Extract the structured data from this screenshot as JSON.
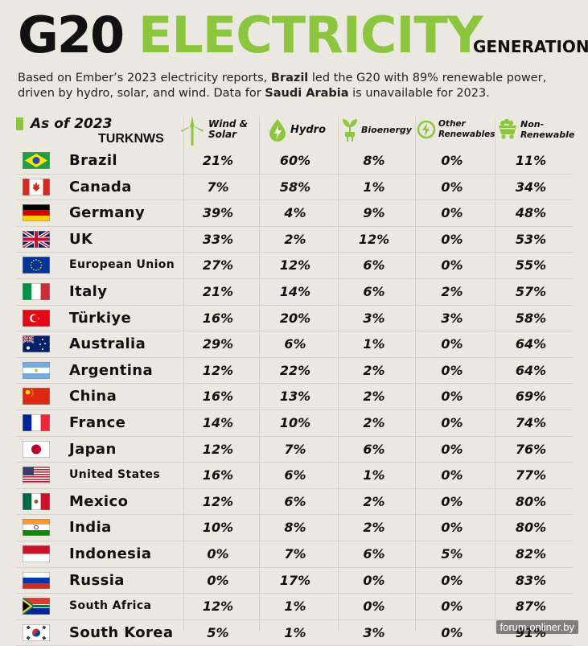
{
  "header": {
    "title_main": "G20",
    "title_accent": "ELECTRICITY",
    "title_suffix": "GENERATION",
    "subtitle_parts": {
      "p1": "Based on Ember’s 2023 electricity reports, ",
      "b1": "Brazil",
      "p2": " led the G20 with 89% renewable power, driven by hydro, solar, and wind. Data for ",
      "b2": "Saudi Arabia",
      "p3": " is unavailable for 2023."
    },
    "as_of": "As of 2023",
    "watermark": "TURKNWS"
  },
  "columns": [
    {
      "l1": "Wind &",
      "l2": "Solar",
      "icon": "wind-turbine-icon"
    },
    {
      "l1": "Hydro",
      "l2": "",
      "icon": "water-drop-bolt-icon"
    },
    {
      "l1": "Bioenergy",
      "l2": "",
      "icon": "plant-plug-icon"
    },
    {
      "l1": "Other",
      "l2": "Renewables",
      "icon": "bolt-circle-icon"
    },
    {
      "l1": "Non-",
      "l2": "Renewable",
      "icon": "coal-cart-icon"
    }
  ],
  "colors": {
    "accent": "#8cc63f",
    "background": "#ebe7e1"
  },
  "credit": "forum.onliner.by",
  "chart_data": {
    "type": "table",
    "title": "G20 ELECTRICITY GENERATION",
    "columns": [
      "Wind & Solar",
      "Hydro",
      "Bioenergy",
      "Other Renewables",
      "Non-Renewable"
    ],
    "rows": [
      {
        "country": "Brazil",
        "flag": "brazil-flag",
        "values": [
          "21%",
          "60%",
          "8%",
          "0%",
          "11%"
        ]
      },
      {
        "country": "Canada",
        "flag": "canada-flag",
        "values": [
          "7%",
          "58%",
          "1%",
          "0%",
          "34%"
        ]
      },
      {
        "country": "Germany",
        "flag": "germany-flag",
        "values": [
          "39%",
          "4%",
          "9%",
          "0%",
          "48%"
        ]
      },
      {
        "country": "UK",
        "flag": "uk-flag",
        "values": [
          "33%",
          "2%",
          "12%",
          "0%",
          "53%"
        ]
      },
      {
        "country": "European Union",
        "flag": "eu-flag",
        "values": [
          "27%",
          "12%",
          "6%",
          "0%",
          "55%"
        ]
      },
      {
        "country": "Italy",
        "flag": "italy-flag",
        "values": [
          "21%",
          "14%",
          "6%",
          "2%",
          "57%"
        ]
      },
      {
        "country": "Türkiye",
        "flag": "turkiye-flag",
        "values": [
          "16%",
          "20%",
          "3%",
          "3%",
          "58%"
        ]
      },
      {
        "country": "Australia",
        "flag": "australia-flag",
        "values": [
          "29%",
          "6%",
          "1%",
          "0%",
          "64%"
        ]
      },
      {
        "country": "Argentina",
        "flag": "argentina-flag",
        "values": [
          "12%",
          "22%",
          "2%",
          "0%",
          "64%"
        ]
      },
      {
        "country": "China",
        "flag": "china-flag",
        "values": [
          "16%",
          "13%",
          "2%",
          "0%",
          "69%"
        ]
      },
      {
        "country": "France",
        "flag": "france-flag",
        "values": [
          "14%",
          "10%",
          "2%",
          "0%",
          "74%"
        ]
      },
      {
        "country": "Japan",
        "flag": "japan-flag",
        "values": [
          "12%",
          "7%",
          "6%",
          "0%",
          "76%"
        ]
      },
      {
        "country": "United States",
        "flag": "usa-flag",
        "values": [
          "16%",
          "6%",
          "1%",
          "0%",
          "77%"
        ]
      },
      {
        "country": "Mexico",
        "flag": "mexico-flag",
        "values": [
          "12%",
          "6%",
          "2%",
          "0%",
          "80%"
        ]
      },
      {
        "country": "India",
        "flag": "india-flag",
        "values": [
          "10%",
          "8%",
          "2%",
          "0%",
          "80%"
        ]
      },
      {
        "country": "Indonesia",
        "flag": "indonesia-flag",
        "values": [
          "0%",
          "7%",
          "6%",
          "5%",
          "82%"
        ]
      },
      {
        "country": "Russia",
        "flag": "russia-flag",
        "values": [
          "0%",
          "17%",
          "0%",
          "0%",
          "83%"
        ]
      },
      {
        "country": "South Africa",
        "flag": "south-africa-flag",
        "values": [
          "12%",
          "1%",
          "0%",
          "0%",
          "87%"
        ]
      },
      {
        "country": "South Korea",
        "flag": "south-korea-flag",
        "values": [
          "5%",
          "1%",
          "3%",
          "0%",
          "91%"
        ]
      }
    ]
  }
}
